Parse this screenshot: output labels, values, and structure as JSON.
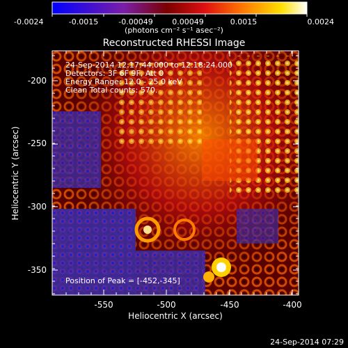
{
  "colorbar": {
    "ticks": [
      "-0.0024",
      "-0.0015",
      "-0.00049",
      "0.00049",
      "0.0015",
      "0.0024"
    ],
    "unit_label": "(photons cm⁻² s⁻¹ asec⁻²)"
  },
  "plot": {
    "title": "Reconstructed RHESSI Image",
    "xlabel": "Heliocentric X (arcsec)",
    "ylabel": "Heliocentric Y (arcsec)",
    "xticks": [
      "-550",
      "-500",
      "-450",
      "-400"
    ],
    "yticks": [
      "-200",
      "-250",
      "-300",
      "-350"
    ],
    "info_lines": [
      "24-Sep-2014 12:17:44.000 to 12:18:24.000",
      "Detectors: 3F 6F 9F, Att 0",
      "Energy Range: 12.0 - 25.0 keV",
      "Clean    Total counts: 570."
    ],
    "peak_text": "Position of Peak = [-452,-345]"
  },
  "footer": {
    "timestamp": "24-Sep-2014 07:29"
  }
}
